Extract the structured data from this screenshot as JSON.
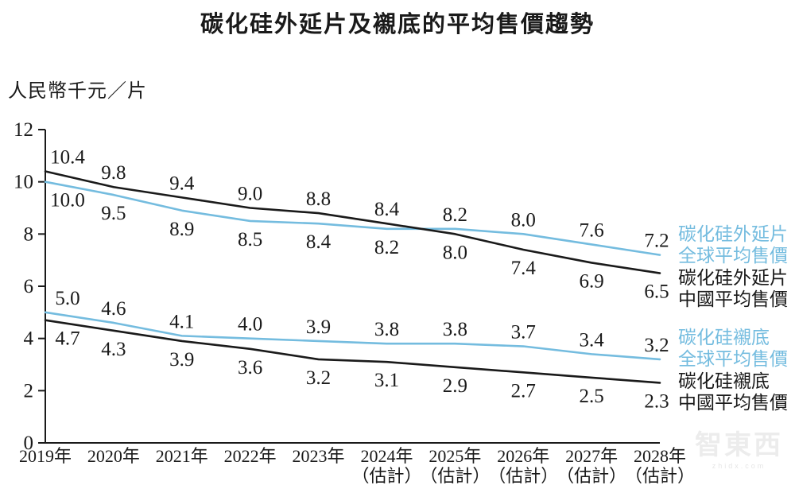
{
  "title": "碳化硅外延片及襯底的平均售價趨勢",
  "y_axis": {
    "unit_label": "人民幣千元／片",
    "ticks": [
      0,
      2,
      4,
      6,
      8,
      10,
      12
    ]
  },
  "watermark": {
    "text": "智東西",
    "subtext": "zhidx.com"
  },
  "colors": {
    "global_line": "#74bcdf",
    "china_line": "#1a1a1a"
  },
  "chart_data": {
    "type": "line",
    "title": "碳化硅外延片及襯底的平均售價趨勢",
    "ylabel": "人民幣千元／片",
    "ylim": [
      0,
      12
    ],
    "yticks": [
      0,
      2,
      4,
      6,
      8,
      10,
      12
    ],
    "grid": false,
    "legend_position": "right",
    "categories": [
      {
        "label": "2019年",
        "sub": ""
      },
      {
        "label": "2020年",
        "sub": ""
      },
      {
        "label": "2021年",
        "sub": ""
      },
      {
        "label": "2022年",
        "sub": ""
      },
      {
        "label": "2023年",
        "sub": ""
      },
      {
        "label": "2024年",
        "sub": "（估計）"
      },
      {
        "label": "2025年",
        "sub": "（估計）"
      },
      {
        "label": "2026年",
        "sub": "（估計）"
      },
      {
        "label": "2027年",
        "sub": "（估計）"
      },
      {
        "label": "2028年",
        "sub": "（估計）"
      }
    ],
    "series": [
      {
        "name": "碳化硅外延片全球平均售價",
        "legend_lines": [
          "碳化硅外延片",
          "全球平均售價"
        ],
        "color": "#74bcdf",
        "pair": 0,
        "values": [
          10.0,
          9.5,
          8.9,
          8.5,
          8.4,
          8.2,
          8.2,
          8.0,
          7.6,
          7.2
        ]
      },
      {
        "name": "碳化硅外延片中國平均售價",
        "legend_lines": [
          "碳化硅外延片",
          "中國平均售價"
        ],
        "color": "#1a1a1a",
        "pair": 0,
        "values": [
          10.4,
          9.8,
          9.4,
          9.0,
          8.8,
          8.4,
          8.0,
          7.4,
          6.9,
          6.5
        ]
      },
      {
        "name": "碳化硅襯底全球平均售價",
        "legend_lines": [
          "碳化硅襯底",
          "全球平均售價"
        ],
        "color": "#74bcdf",
        "pair": 1,
        "values": [
          5.0,
          4.6,
          4.1,
          4.0,
          3.9,
          3.8,
          3.8,
          3.7,
          3.4,
          3.2
        ]
      },
      {
        "name": "碳化硅襯底中國平均售價",
        "legend_lines": [
          "碳化硅襯底",
          "中國平均售價"
        ],
        "color": "#1a1a1a",
        "pair": 1,
        "values": [
          4.7,
          4.3,
          3.9,
          3.6,
          3.2,
          3.1,
          2.9,
          2.7,
          2.5,
          2.3
        ]
      }
    ]
  }
}
